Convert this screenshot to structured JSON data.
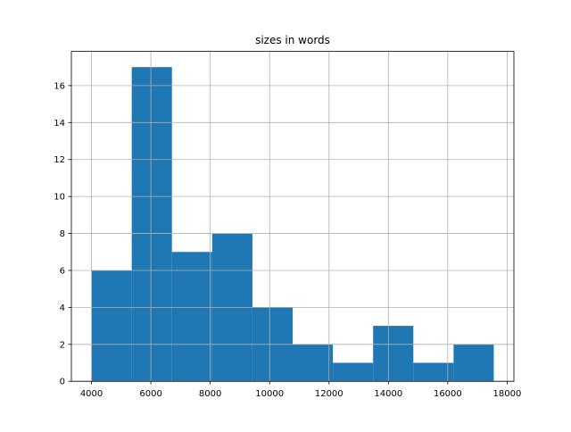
{
  "chart_data": {
    "type": "histogram",
    "title": "sizes in words",
    "bins": [
      4000,
      5355,
      6710,
      8065,
      9420,
      10775,
      12130,
      13485,
      14840,
      16195,
      17550
    ],
    "counts": [
      6,
      17,
      7,
      8,
      4,
      2,
      1,
      3,
      1,
      2
    ],
    "color": "#1f77b4",
    "xlim": [
      3322.5,
      18227.5
    ],
    "xticks": [
      4000,
      6000,
      8000,
      10000,
      12000,
      14000,
      16000,
      18000
    ],
    "ylim": [
      0,
      17.85
    ],
    "yticks": [
      0,
      2,
      4,
      6,
      8,
      10,
      12,
      14,
      16
    ],
    "grid": true
  }
}
